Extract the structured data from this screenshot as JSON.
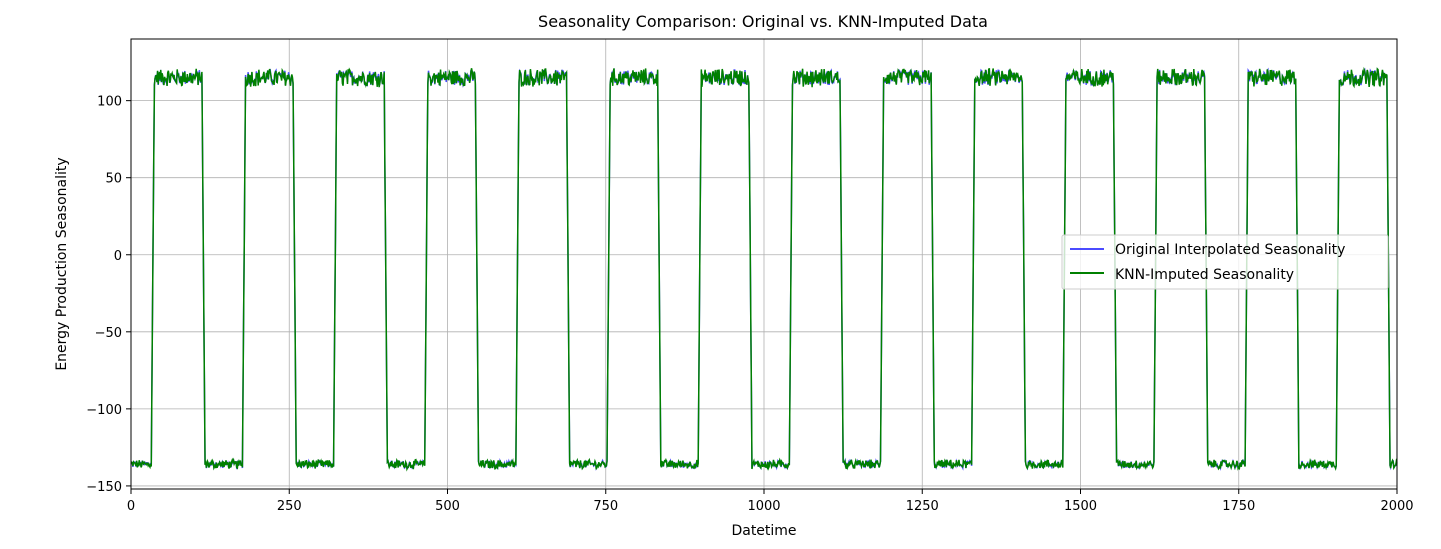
{
  "chart_data": {
    "type": "line",
    "title": "Seasonality Comparison: Original vs. KNN-Imputed Data",
    "xlabel": "Datetime",
    "ylabel": "Energy Production Seasonality",
    "xlim": [
      0,
      2000
    ],
    "ylim": [
      -152,
      140
    ],
    "xticks": [
      0,
      250,
      500,
      750,
      1000,
      1250,
      1500,
      1750,
      2000
    ],
    "yticks": [
      -150,
      -100,
      -50,
      0,
      50,
      100
    ],
    "grid": true,
    "legend_position": "center-right",
    "pattern": {
      "description_values": {
        "period": 144,
        "high_start": 35,
        "high_end": 114,
        "high_level": 115,
        "low_level": -136,
        "noise_amplitude_high": 5,
        "noise_amplitude_low": 2.5
      }
    },
    "series": [
      {
        "name": "Original Interpolated Seasonality",
        "color": "#4b4bff"
      },
      {
        "name": "KNN-Imputed Seasonality",
        "color": "#008000"
      }
    ]
  }
}
